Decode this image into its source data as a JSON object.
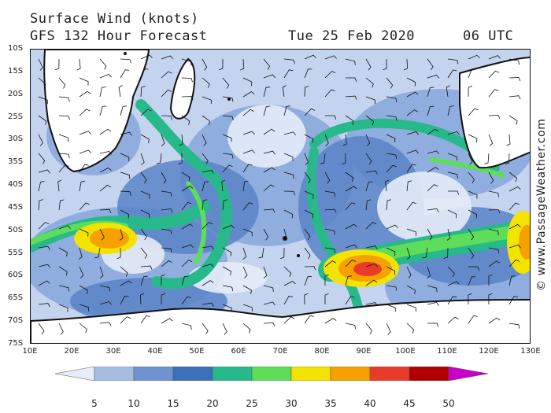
{
  "header": {
    "title": "Surface Wind (knots)",
    "forecast": "GFS 132 Hour Forecast",
    "date": "Tue 25 Feb 2020",
    "hour": "06 UTC"
  },
  "credit": "© www.PassageWeather.com",
  "lat_labels": [
    "10S",
    "15S",
    "20S",
    "25S",
    "30S",
    "35S",
    "40S",
    "45S",
    "50S",
    "55S",
    "60S",
    "65S",
    "70S",
    "75S"
  ],
  "lon_labels": [
    "10E",
    "20E",
    "30E",
    "40E",
    "50E",
    "60E",
    "70E",
    "80E",
    "90E",
    "100E",
    "110E",
    "120E",
    "130E"
  ],
  "legend": {
    "labels": [
      "5",
      "10",
      "15",
      "20",
      "25",
      "30",
      "35",
      "40",
      "45",
      "50"
    ],
    "colors": [
      "#e6ecf8",
      "#a6bde2",
      "#6e93d0",
      "#3a6fb9",
      "#28b98a",
      "#5ddd5a",
      "#f3e300",
      "#f6a100",
      "#e83c2a",
      "#b00000",
      "#c800c8"
    ]
  },
  "colors": {
    "calm": "#e6ecf8",
    "light": "#a6bde2",
    "moderate": "#6e93d0",
    "fresh": "#3a6fb9",
    "strong": "#28b98a",
    "gale": "#5ddd5a",
    "storm": "#f3e300",
    "severe": "#f6a100",
    "land": "#ffffff",
    "coast": "#111111"
  }
}
